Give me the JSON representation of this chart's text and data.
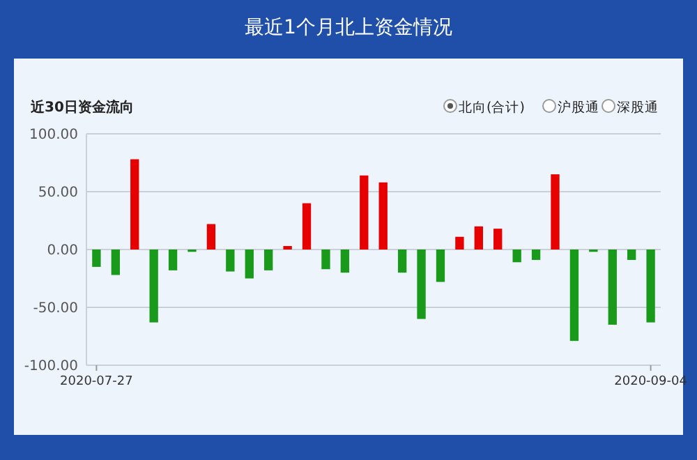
{
  "chart_data": {
    "type": "bar",
    "title": "最近1个月北上资金情况",
    "subtitle": "近30日资金流向",
    "annotations": [
      "北向(合计)",
      "沪股通",
      "深股通"
    ],
    "categories": [
      "2020-07-27",
      null,
      null,
      null,
      null,
      null,
      null,
      null,
      null,
      null,
      null,
      null,
      null,
      null,
      null,
      null,
      null,
      null,
      null,
      null,
      null,
      null,
      null,
      null,
      null,
      null,
      null,
      null,
      null,
      "2020-09-04"
    ],
    "values": [
      -15,
      -22,
      78,
      -63,
      -18,
      -2,
      22,
      -19,
      -25,
      -18,
      3,
      40,
      -17,
      -20,
      64,
      58,
      -20,
      -60,
      -28,
      11,
      20,
      18,
      -11,
      -9,
      65,
      -79,
      -2,
      -65,
      -9,
      -63
    ],
    "colors": [
      "#1a9a1a",
      "#1a9a1a",
      "#e60000",
      "#1a9a1a",
      "#1a9a1a",
      "#1a9a1a",
      "#e60000",
      "#1a9a1a",
      "#1a9a1a",
      "#1a9a1a",
      "#e60000",
      "#e60000",
      "#1a9a1a",
      "#1a9a1a",
      "#e60000",
      "#e60000",
      "#1a9a1a",
      "#1a9a1a",
      "#1a9a1a",
      "#e60000",
      "#e60000",
      "#e60000",
      "#1a9a1a",
      "#1a9a1a",
      "#e60000",
      "#1a9a1a",
      "#1a9a1a",
      "#1a9a1a",
      "#1a9a1a",
      "#1a9a1a"
    ],
    "ylim": [
      -100,
      100
    ],
    "yticks": [
      {
        "value": -100,
        "label": "-100.00"
      },
      {
        "value": -50,
        "label": "-50.00"
      },
      {
        "value": 0,
        "label": "0.00"
      },
      {
        "value": 50,
        "label": "50.00"
      },
      {
        "value": 100,
        "label": "100.00"
      }
    ],
    "grid": "y"
  }
}
